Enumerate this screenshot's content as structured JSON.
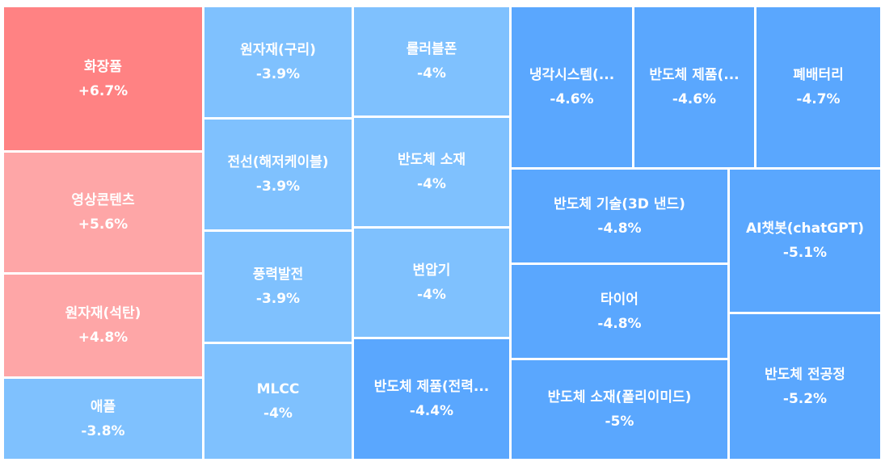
{
  "chart_data": {
    "type": "treemap",
    "title": "",
    "colors": {
      "up_strong": "#ff8283",
      "up_mild": "#fea6a7",
      "down_mild": "#7fc1fe",
      "down_strong": "#5aa7fe"
    },
    "items": [
      {
        "name": "화장품",
        "change": 6.7,
        "label": "+6.7%"
      },
      {
        "name": "영상콘텐츠",
        "change": 5.6,
        "label": "+5.6%"
      },
      {
        "name": "원자재(석탄)",
        "change": 4.8,
        "label": "+4.8%"
      },
      {
        "name": "애플",
        "change": -3.8,
        "label": "-3.8%"
      },
      {
        "name": "원자재(구리)",
        "change": -3.9,
        "label": "-3.9%"
      },
      {
        "name": "전선(해저케이블)",
        "change": -3.9,
        "label": "-3.9%"
      },
      {
        "name": "풍력발전",
        "change": -3.9,
        "label": "-3.9%"
      },
      {
        "name": "MLCC",
        "change": -4.0,
        "label": "-4%"
      },
      {
        "name": "롤러블폰",
        "change": -4.0,
        "label": "-4%"
      },
      {
        "name": "반도체 소재",
        "change": -4.0,
        "label": "-4%"
      },
      {
        "name": "변압기",
        "change": -4.0,
        "label": "-4%"
      },
      {
        "name": "반도체 제품(전력...",
        "change": -4.4,
        "label": "-4.4%"
      },
      {
        "name": "냉각시스템(...",
        "change": -4.6,
        "label": "-4.6%"
      },
      {
        "name": "반도체 제품(...",
        "change": -4.6,
        "label": "-4.6%"
      },
      {
        "name": "폐배터리",
        "change": -4.7,
        "label": "-4.7%"
      },
      {
        "name": "반도체 기술(3D 낸드)",
        "change": -4.8,
        "label": "-4.8%"
      },
      {
        "name": "타이어",
        "change": -4.8,
        "label": "-4.8%"
      },
      {
        "name": "반도체 소재(폴리이미드)",
        "change": -5.0,
        "label": "-5%"
      },
      {
        "name": "AI챗봇(chatGPT)",
        "change": -5.1,
        "label": "-5.1%"
      },
      {
        "name": "반도체 전공정",
        "change": -5.2,
        "label": "-5.2%"
      }
    ]
  }
}
